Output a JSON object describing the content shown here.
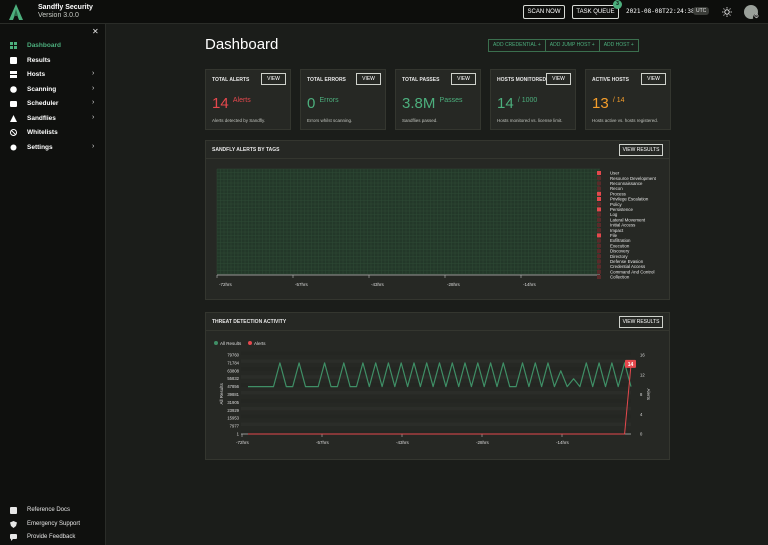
{
  "app": {
    "name": "Sandfly Security",
    "version": "Version 3.0.0"
  },
  "topbar": {
    "scan_now": "SCAN NOW",
    "task_queue": "TASK QUEUE",
    "queue_count": "3",
    "clock": "2021-08-08T22:24:38Z",
    "timezone": "UTC"
  },
  "sidebar": {
    "items": [
      {
        "label": "Dashboard",
        "icon": "grid-icon",
        "chevron": false,
        "active": true
      },
      {
        "label": "Results",
        "icon": "results-icon",
        "chevron": false
      },
      {
        "label": "Hosts",
        "icon": "server-icon",
        "chevron": true
      },
      {
        "label": "Scanning",
        "icon": "radar-icon",
        "chevron": true
      },
      {
        "label": "Scheduler",
        "icon": "calendar-icon",
        "chevron": true
      },
      {
        "label": "Sandflies",
        "icon": "sandfly-icon",
        "chevron": true
      },
      {
        "label": "Whitelists",
        "icon": "ban-icon",
        "chevron": false
      },
      {
        "label": "Settings",
        "icon": "gear-icon",
        "chevron": true
      }
    ],
    "footer": [
      {
        "label": "Reference Docs",
        "icon": "book-icon"
      },
      {
        "label": "Emergency Support",
        "icon": "shield-icon"
      },
      {
        "label": "Provide Feedback",
        "icon": "feedback-icon"
      }
    ]
  },
  "main": {
    "title": "Dashboard",
    "actions": [
      "ADD CREDENTIAL",
      "ADD JUMP HOST",
      "ADD HOST"
    ],
    "cards": [
      {
        "title": "TOTAL ALERTS",
        "value": "14",
        "unit": "Alerts",
        "color": "#e5484d",
        "sub": "Alerts detected by Sandfly.",
        "view": "VIEW"
      },
      {
        "title": "TOTAL ERRORS",
        "value": "0",
        "unit": "Errors",
        "color": "#4caf7d",
        "sub": "Errors whilst scanning.",
        "view": "VIEW"
      },
      {
        "title": "TOTAL PASSES",
        "value": "3.8M",
        "unit": "Passes",
        "color": "#4caf7d",
        "sub": "Sandflies passed.",
        "view": "VIEW"
      },
      {
        "title": "HOSTS MONITORED",
        "value": "14",
        "unit": "/ 1000",
        "color": "#4caf7d",
        "sub": "Hosts monitored vs. license limit.",
        "view": "VIEW"
      },
      {
        "title": "ACTIVE HOSTS",
        "value": "13",
        "unit": "/ 14",
        "color": "#f59e2b",
        "sub": "Hosts active vs. hosts registered.",
        "view": "VIEW"
      }
    ],
    "tags_panel": {
      "title": "SANDFLY ALERTS BY TAGS",
      "view": "VIEW RESULTS",
      "x_ticks": [
        "-72hrs",
        "-57hrs",
        "-43hrs",
        "-28hrs",
        "-14hrs"
      ],
      "tags": [
        "User",
        "Resource Development",
        "Reconnaissance",
        "Recon",
        "Process",
        "Privilege Escalation",
        "Policy",
        "Persistence",
        "Log",
        "Lateral Movement",
        "Initial Access",
        "Impact",
        "File",
        "Exfiltration",
        "Execution",
        "Discovery",
        "Directory",
        "Defense Evasion",
        "Credential Access",
        "Command And Control",
        "Collection"
      ],
      "tag_alerts": [
        1,
        0,
        0,
        0,
        1,
        1,
        0,
        1,
        0,
        0,
        0,
        0,
        1,
        0,
        0,
        0,
        0,
        0,
        0,
        0,
        0
      ]
    },
    "threat_panel": {
      "title": "THREAT DETECTION ACTIVITY",
      "view": "VIEW RESULTS",
      "legend": [
        "All Results",
        "Alerts"
      ],
      "alert_marker": "14"
    }
  },
  "colors": {
    "accent": "#4caf7d",
    "alert": "#e5484d",
    "warning": "#f59e2b"
  },
  "chart_data": {
    "type": "line",
    "title": "THREAT DETECTION ACTIVITY",
    "x_ticks": [
      "-72hrs",
      "-57hrs",
      "-43hrs",
      "-28hrs",
      "-14hrs"
    ],
    "ylabel": "All Results",
    "y2label": "Alerts",
    "y_ticks": [
      "79760",
      "71784",
      "63808",
      "55832",
      "47856",
      "39881",
      "31905",
      "23929",
      "15953",
      "7977",
      "1"
    ],
    "y2_ticks": [
      "16",
      "12",
      "8",
      "4",
      "0"
    ],
    "ylim": [
      0,
      79760
    ],
    "y2lim": [
      0,
      16
    ],
    "series": [
      {
        "name": "All Results",
        "color": "#3f8f66",
        "axis": "left",
        "values": [
          47856,
          47856,
          47856,
          47856,
          47856,
          71784,
          47856,
          47856,
          71784,
          47856,
          47856,
          47856,
          71784,
          47856,
          47856,
          71784,
          47856,
          47856,
          71784,
          47856,
          71784,
          47856,
          71784,
          47856,
          71784,
          47856,
          71784,
          47856,
          71784,
          47856,
          71784,
          47856,
          71784,
          47856,
          71784,
          47856,
          71784,
          47856,
          71784,
          47856,
          71784,
          47856,
          47856,
          71784,
          47856,
          71784,
          47856,
          71784,
          47856,
          63808,
          47856,
          55832,
          47856,
          71784,
          47856,
          71784,
          47856,
          71784,
          47856,
          71784,
          47856
        ]
      },
      {
        "name": "Alerts",
        "color": "#e5484d",
        "axis": "right",
        "values": [
          0,
          0,
          0,
          0,
          0,
          0,
          0,
          0,
          0,
          0,
          0,
          0,
          0,
          0,
          0,
          0,
          0,
          0,
          0,
          0,
          0,
          0,
          0,
          0,
          0,
          0,
          0,
          0,
          0,
          0,
          0,
          0,
          0,
          0,
          0,
          0,
          0,
          0,
          0,
          0,
          0,
          0,
          0,
          0,
          0,
          0,
          0,
          0,
          0,
          0,
          0,
          0,
          0,
          0,
          0,
          0,
          0,
          0,
          0,
          0,
          14
        ]
      }
    ]
  }
}
